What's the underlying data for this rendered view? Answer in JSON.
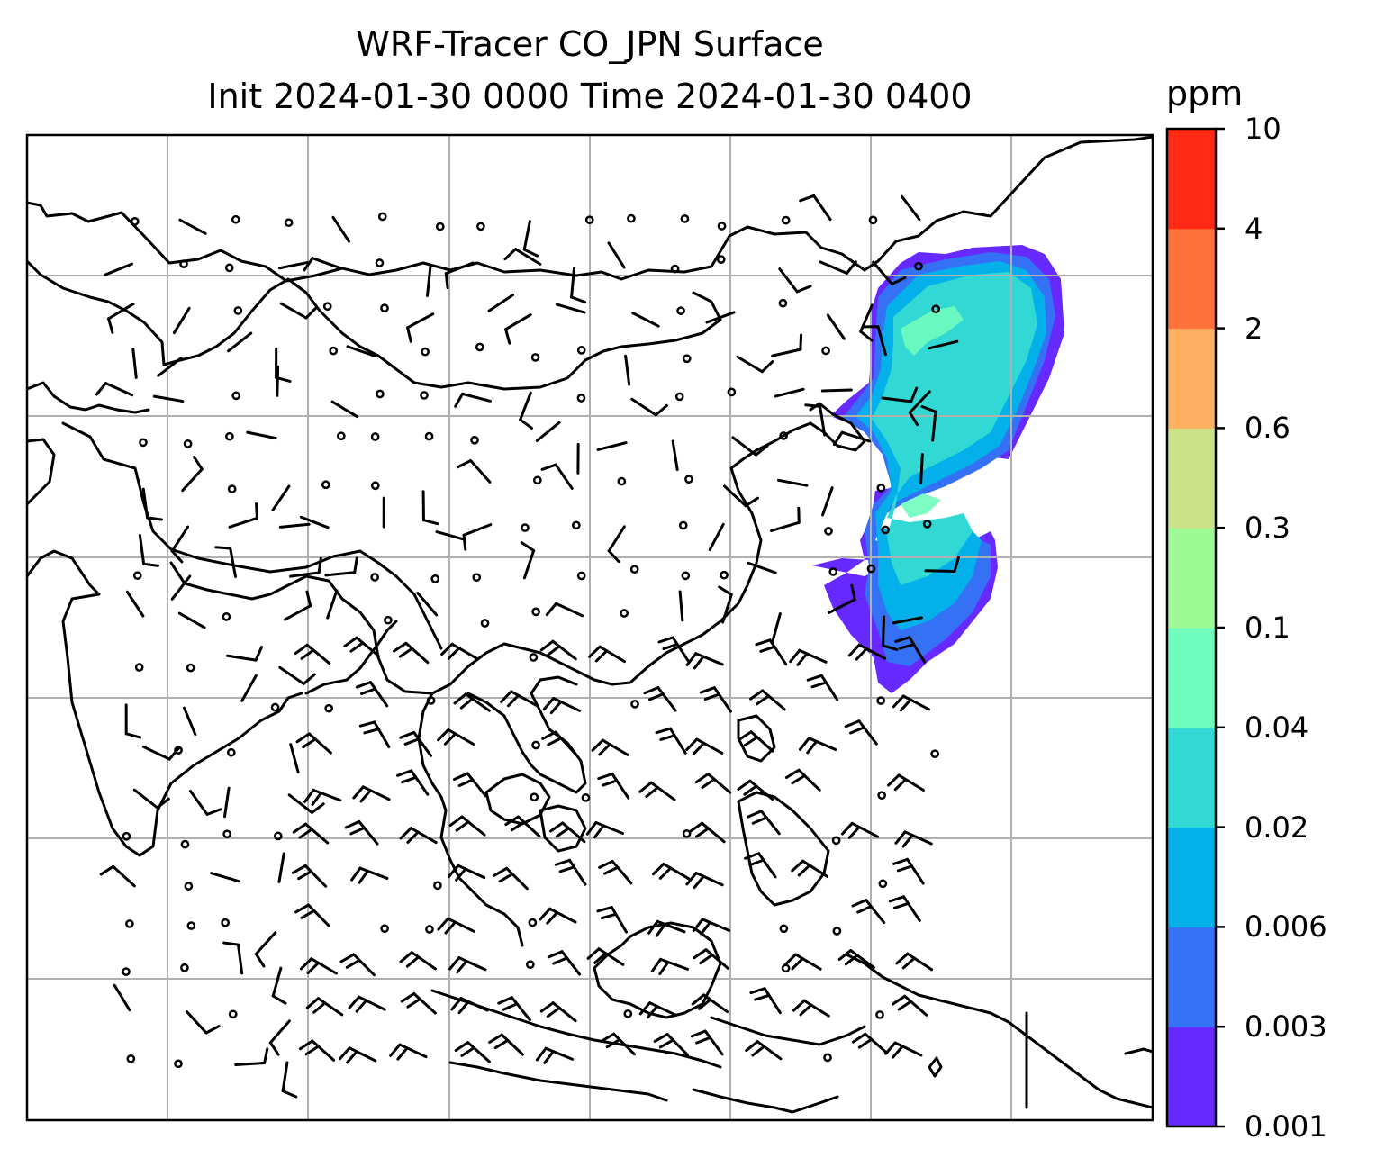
{
  "chart_data": {
    "type": "contour_map",
    "title": "WRF-Tracer CO_JPN Surface",
    "subtitle": "Init 2024-01-30 0000 Time 2024-01-30 0400",
    "variable": "CO_JPN tracer",
    "colorbar": {
      "unit": "ppm",
      "ticks": [
        "0.001",
        "0.003",
        "0.006",
        "0.02",
        "0.04",
        "0.1",
        "0.3",
        "0.6",
        "2",
        "4",
        "10"
      ],
      "colors": [
        "#6629ff",
        "#3571f4",
        "#03b0ea",
        "#32d8d4",
        "#6ffdbe",
        "#9cfb94",
        "#cce288",
        "#ffb060",
        "#ff713b",
        "#ff2a16"
      ]
    },
    "grid": true,
    "overlays": [
      "coastlines",
      "borders",
      "wind barbs"
    ]
  }
}
